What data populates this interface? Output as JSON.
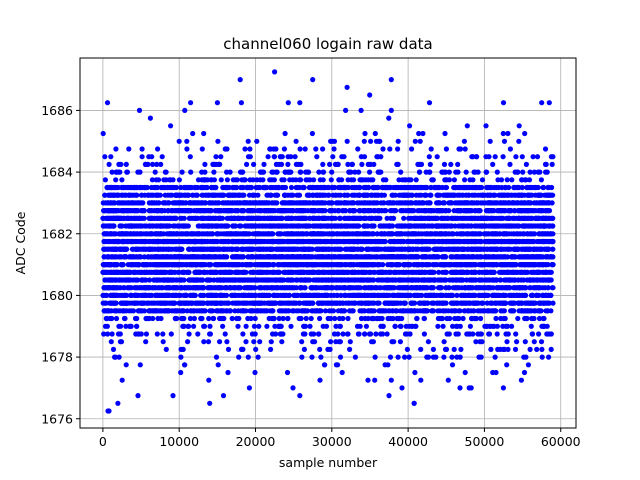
{
  "chart_data": {
    "type": "scatter",
    "title": "channel060 logain raw data",
    "xlabel": "sample number",
    "ylabel": "ADC Code",
    "xlim": [
      -3000,
      62000
    ],
    "ylim": [
      1675.7,
      1687.7
    ],
    "xticks": [
      0,
      10000,
      20000,
      30000,
      40000,
      50000,
      60000
    ],
    "yticks": [
      1676,
      1678,
      1680,
      1682,
      1684,
      1686
    ],
    "grid": true,
    "marker_color": "#0000ff",
    "n_samples": 59000,
    "value_range": [
      1676.25,
      1687.25
    ],
    "dense_band": [
      1679.5,
      1683.5
    ],
    "notable_points": [
      {
        "x": 800,
        "y": 1676.25
      },
      {
        "x": 600,
        "y": 1686.25
      },
      {
        "x": 4800,
        "y": 1686.0
      },
      {
        "x": 11500,
        "y": 1686.25
      },
      {
        "x": 15000,
        "y": 1686.25
      },
      {
        "x": 18000,
        "y": 1687.0
      },
      {
        "x": 22500,
        "y": 1687.25
      },
      {
        "x": 24300,
        "y": 1686.25
      },
      {
        "x": 25800,
        "y": 1686.25
      },
      {
        "x": 27500,
        "y": 1687.0
      },
      {
        "x": 32000,
        "y": 1686.75
      },
      {
        "x": 31800,
        "y": 1686.0
      },
      {
        "x": 37800,
        "y": 1686.0
      },
      {
        "x": 42800,
        "y": 1686.25
      },
      {
        "x": 52500,
        "y": 1686.25
      },
      {
        "x": 57500,
        "y": 1686.25
      },
      {
        "x": 58500,
        "y": 1686.25
      },
      {
        "x": 40800,
        "y": 1676.5
      },
      {
        "x": 4600,
        "y": 1676.75
      },
      {
        "x": 15800,
        "y": 1676.75
      },
      {
        "x": 25800,
        "y": 1676.75
      },
      {
        "x": 37500,
        "y": 1676.75
      },
      {
        "x": 46800,
        "y": 1677.0
      },
      {
        "x": 48000,
        "y": 1677.0
      },
      {
        "x": 19200,
        "y": 1677.0
      }
    ]
  }
}
